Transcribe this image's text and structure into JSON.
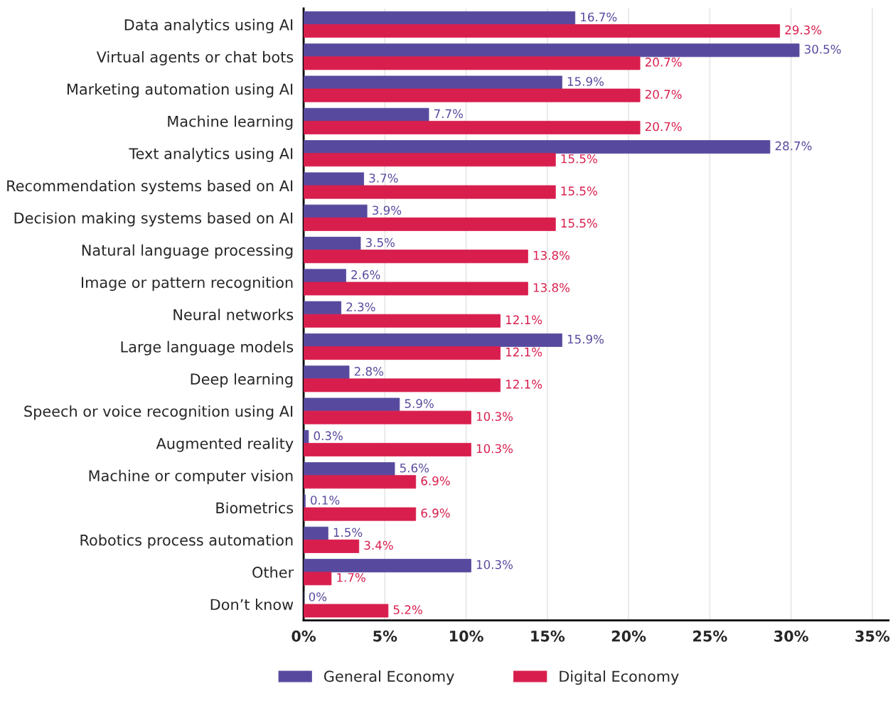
{
  "chart_data": {
    "type": "bar",
    "orientation": "horizontal",
    "categories": [
      "Data analytics using AI",
      "Virtual agents or chat bots",
      "Marketing automation using AI",
      "Machine learning",
      "Text analytics using AI",
      "Recommendation systems based on AI",
      "Decision making systems based on AI",
      "Natural language processing",
      "Image or pattern recognition",
      "Neural networks",
      "Large language models",
      "Deep learning",
      "Speech or voice recognition using AI",
      "Augmented reality",
      "Machine or computer vision",
      "Biometrics",
      "Robotics process automation",
      "Other",
      "Don’t know"
    ],
    "series": [
      {
        "name": "General Economy",
        "color": "#574a9e",
        "values": [
          16.7,
          30.5,
          15.9,
          7.7,
          28.7,
          3.7,
          3.9,
          3.5,
          2.6,
          2.3,
          15.9,
          2.8,
          5.9,
          0.3,
          5.6,
          0.1,
          1.5,
          10.3,
          0
        ],
        "value_labels": [
          "16.7%",
          "30.5%",
          "15.9%",
          "7.7%",
          "28.7%",
          "3.7%",
          "3.9%",
          "3.5%",
          "2.6%",
          "2.3%",
          "15.9%",
          "2.8%",
          "5.9%",
          "0.3%",
          "5.6%",
          "0.1%",
          "1.5%",
          "10.3%",
          "0%"
        ]
      },
      {
        "name": "Digital Economy",
        "color": "#d81e4d",
        "values": [
          29.3,
          20.7,
          20.7,
          20.7,
          15.5,
          15.5,
          15.5,
          13.8,
          13.8,
          12.1,
          12.1,
          12.1,
          10.3,
          10.3,
          6.9,
          6.9,
          3.4,
          1.7,
          5.2
        ],
        "value_labels": [
          "29.3%",
          "20.7%",
          "20.7%",
          "20.7%",
          "15.5%",
          "15.5%",
          "15.5%",
          "13.8%",
          "13.8%",
          "12.1%",
          "12.1%",
          "12.1%",
          "10.3%",
          "10.3%",
          "6.9%",
          "6.9%",
          "3.4%",
          "1.7%",
          "5.2%"
        ]
      }
    ],
    "xlim": [
      0,
      36
    ],
    "xticks": [
      {
        "value": 0,
        "label": "0%"
      },
      {
        "value": 5,
        "label": "5%"
      },
      {
        "value": 10,
        "label": "10%"
      },
      {
        "value": 15,
        "label": "15%"
      },
      {
        "value": 20,
        "label": "20%"
      },
      {
        "value": 25,
        "label": "25%"
      },
      {
        "value": 30,
        "label": "30%"
      },
      {
        "value": 35,
        "label": "35%"
      }
    ],
    "grid": "x",
    "legend": "bottom"
  }
}
